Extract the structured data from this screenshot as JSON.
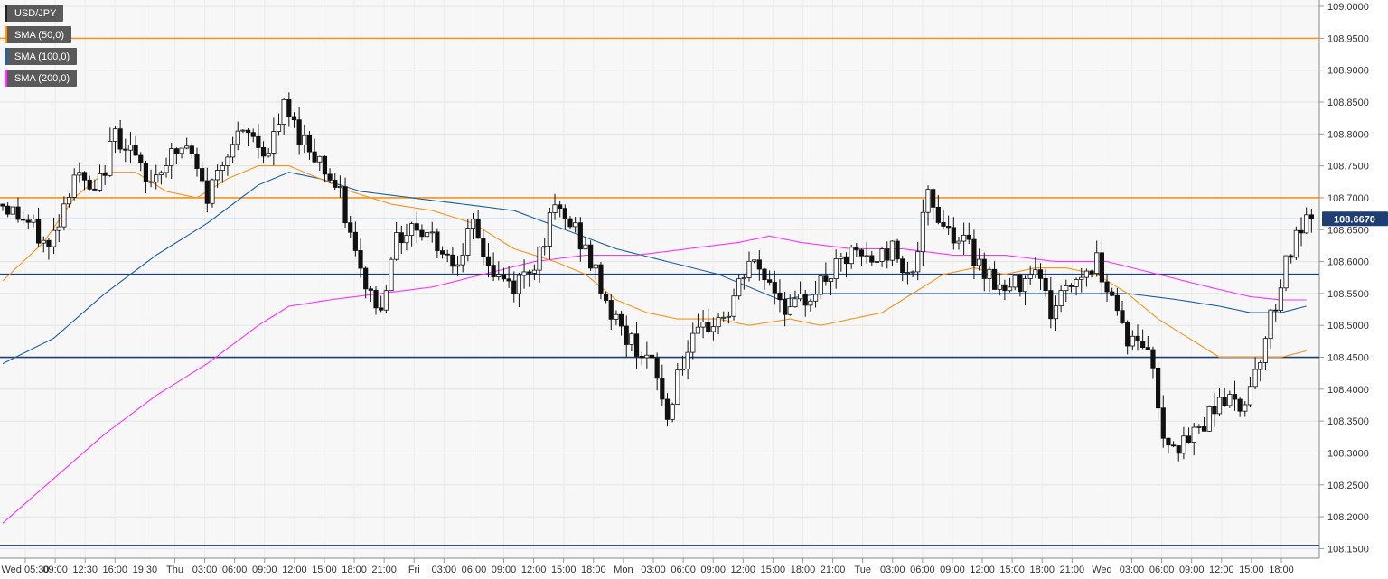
{
  "chart_data": {
    "type": "candlestick",
    "symbol": "USD/JPY",
    "indicators": [
      {
        "name": "USD/JPY",
        "color": "#000000"
      },
      {
        "name": "SMA (50,0)",
        "color": "#f7941d"
      },
      {
        "name": "SMA (100,0)",
        "color": "#1f5fa8"
      },
      {
        "name": "SMA (200,0)",
        "color": "#ff33ff"
      }
    ],
    "y_axis": {
      "ticks": [
        "109.0000",
        "108.9500",
        "108.9000",
        "108.8500",
        "108.8000",
        "108.7500",
        "108.7000",
        "108.6500",
        "108.6000",
        "108.5500",
        "108.5000",
        "108.4500",
        "108.4000",
        "108.3500",
        "108.3000",
        "108.2500",
        "108.2000",
        "108.1500"
      ],
      "ylim": [
        108.135,
        109.01
      ],
      "position": "right"
    },
    "x_axis": {
      "ticks": [
        "Wed 05:30",
        "09:00",
        "12:30",
        "16:00",
        "19:30",
        "Thu",
        "03:00",
        "06:00",
        "09:00",
        "12:00",
        "15:00",
        "18:00",
        "21:00",
        "Fri",
        "03:00",
        "06:00",
        "09:00",
        "12:00",
        "15:00",
        "18:00",
        "Mon",
        "03:00",
        "06:00",
        "09:00",
        "12:00",
        "15:00",
        "18:00",
        "21:00",
        "Tue",
        "03:00",
        "06:00",
        "09:00",
        "12:00",
        "15:00",
        "18:00",
        "21:00",
        "Wed",
        "03:00",
        "06:00",
        "09:00",
        "12:00",
        "15:00",
        "18:00"
      ]
    },
    "current_price": {
      "label": "108.6670",
      "value": 108.667
    },
    "horizontal_levels": [
      {
        "value": 108.95,
        "color": "#f7941d"
      },
      {
        "value": 108.7,
        "color": "#f7941d"
      },
      {
        "value": 108.58,
        "color": "#1f3f74"
      },
      {
        "value": 108.45,
        "color": "#1f3f74"
      },
      {
        "value": 108.155,
        "color": "#1f3f74"
      }
    ],
    "anchors": [
      [
        0,
        108.69
      ],
      [
        5,
        108.66
      ],
      [
        9,
        108.62
      ],
      [
        14,
        108.74
      ],
      [
        18,
        108.7
      ],
      [
        22,
        108.8
      ],
      [
        25,
        108.78
      ],
      [
        28,
        108.72
      ],
      [
        32,
        108.76
      ],
      [
        36,
        108.78
      ],
      [
        40,
        108.7
      ],
      [
        44,
        108.78
      ],
      [
        48,
        108.8
      ],
      [
        52,
        108.77
      ],
      [
        55,
        108.84
      ],
      [
        58,
        108.8
      ],
      [
        62,
        108.76
      ],
      [
        66,
        108.7
      ],
      [
        70,
        108.58
      ],
      [
        74,
        108.52
      ],
      [
        76,
        108.62
      ],
      [
        80,
        108.66
      ],
      [
        84,
        108.64
      ],
      [
        88,
        108.6
      ],
      [
        92,
        108.65
      ],
      [
        96,
        108.58
      ],
      [
        100,
        108.56
      ],
      [
        104,
        108.6
      ],
      [
        108,
        108.68
      ],
      [
        112,
        108.65
      ],
      [
        116,
        108.58
      ],
      [
        119,
        108.52
      ],
      [
        122,
        108.48
      ],
      [
        125,
        108.46
      ],
      [
        128,
        108.42
      ],
      [
        130,
        108.35
      ],
      [
        132,
        108.43
      ],
      [
        135,
        108.47
      ],
      [
        138,
        108.5
      ],
      [
        142,
        108.52
      ],
      [
        146,
        108.6
      ],
      [
        150,
        108.57
      ],
      [
        154,
        108.52
      ],
      [
        158,
        108.55
      ],
      [
        162,
        108.58
      ],
      [
        166,
        108.61
      ],
      [
        170,
        108.6
      ],
      [
        174,
        108.62
      ],
      [
        178,
        108.58
      ],
      [
        181,
        108.7
      ],
      [
        184,
        108.66
      ],
      [
        188,
        108.63
      ],
      [
        192,
        108.59
      ],
      [
        196,
        108.55
      ],
      [
        199,
        108.57
      ],
      [
        202,
        108.6
      ],
      [
        205,
        108.52
      ],
      [
        208,
        108.56
      ],
      [
        211,
        108.58
      ],
      [
        214,
        108.6
      ],
      [
        217,
        108.55
      ],
      [
        220,
        108.48
      ],
      [
        222,
        108.47
      ],
      [
        224,
        108.47
      ],
      [
        227,
        108.33
      ],
      [
        231,
        108.31
      ],
      [
        235,
        108.35
      ],
      [
        238,
        108.39
      ],
      [
        242,
        108.37
      ],
      [
        245,
        108.43
      ],
      [
        248,
        108.51
      ],
      [
        251,
        108.6
      ],
      [
        254,
        108.65
      ],
      [
        256,
        108.67
      ]
    ],
    "sma50": [
      [
        0,
        108.57
      ],
      [
        8,
        108.63
      ],
      [
        14,
        108.7
      ],
      [
        20,
        108.74
      ],
      [
        26,
        108.74
      ],
      [
        32,
        108.71
      ],
      [
        38,
        108.7
      ],
      [
        44,
        108.73
      ],
      [
        50,
        108.75
      ],
      [
        56,
        108.75
      ],
      [
        62,
        108.73
      ],
      [
        68,
        108.71
      ],
      [
        76,
        108.69
      ],
      [
        84,
        108.68
      ],
      [
        92,
        108.66
      ],
      [
        100,
        108.62
      ],
      [
        108,
        108.6
      ],
      [
        114,
        108.58
      ],
      [
        120,
        108.54
      ],
      [
        126,
        108.52
      ],
      [
        132,
        108.51
      ],
      [
        140,
        108.51
      ],
      [
        146,
        108.5
      ],
      [
        154,
        108.51
      ],
      [
        160,
        108.5
      ],
      [
        166,
        108.51
      ],
      [
        172,
        108.52
      ],
      [
        178,
        108.55
      ],
      [
        184,
        108.58
      ],
      [
        190,
        108.59
      ],
      [
        196,
        108.58
      ],
      [
        202,
        108.59
      ],
      [
        208,
        108.59
      ],
      [
        214,
        108.58
      ],
      [
        220,
        108.55
      ],
      [
        226,
        108.51
      ],
      [
        232,
        108.48
      ],
      [
        238,
        108.45
      ],
      [
        244,
        108.45
      ],
      [
        250,
        108.45
      ],
      [
        255,
        108.46
      ]
    ],
    "sma100": [
      [
        0,
        108.44
      ],
      [
        10,
        108.48
      ],
      [
        20,
        108.55
      ],
      [
        30,
        108.61
      ],
      [
        40,
        108.66
      ],
      [
        50,
        108.72
      ],
      [
        56,
        108.74
      ],
      [
        62,
        108.73
      ],
      [
        70,
        108.71
      ],
      [
        80,
        108.7
      ],
      [
        90,
        108.69
      ],
      [
        100,
        108.68
      ],
      [
        110,
        108.65
      ],
      [
        120,
        108.62
      ],
      [
        130,
        108.6
      ],
      [
        140,
        108.58
      ],
      [
        146,
        108.56
      ],
      [
        152,
        108.54
      ],
      [
        160,
        108.55
      ],
      [
        170,
        108.55
      ],
      [
        180,
        108.55
      ],
      [
        190,
        108.55
      ],
      [
        200,
        108.55
      ],
      [
        210,
        108.55
      ],
      [
        220,
        108.55
      ],
      [
        230,
        108.54
      ],
      [
        238,
        108.53
      ],
      [
        244,
        108.52
      ],
      [
        250,
        108.52
      ],
      [
        255,
        108.53
      ]
    ],
    "sma200": [
      [
        0,
        108.19
      ],
      [
        10,
        108.26
      ],
      [
        20,
        108.33
      ],
      [
        30,
        108.39
      ],
      [
        40,
        108.44
      ],
      [
        50,
        108.5
      ],
      [
        56,
        108.53
      ],
      [
        64,
        108.54
      ],
      [
        74,
        108.55
      ],
      [
        84,
        108.56
      ],
      [
        94,
        108.58
      ],
      [
        104,
        108.6
      ],
      [
        114,
        108.61
      ],
      [
        124,
        108.61
      ],
      [
        134,
        108.62
      ],
      [
        144,
        108.63
      ],
      [
        150,
        108.64
      ],
      [
        156,
        108.63
      ],
      [
        166,
        108.62
      ],
      [
        176,
        108.62
      ],
      [
        186,
        108.61
      ],
      [
        196,
        108.61
      ],
      [
        206,
        108.6
      ],
      [
        216,
        108.6
      ],
      [
        226,
        108.58
      ],
      [
        236,
        108.56
      ],
      [
        244,
        108.545
      ],
      [
        250,
        108.54
      ],
      [
        255,
        108.54
      ]
    ]
  }
}
